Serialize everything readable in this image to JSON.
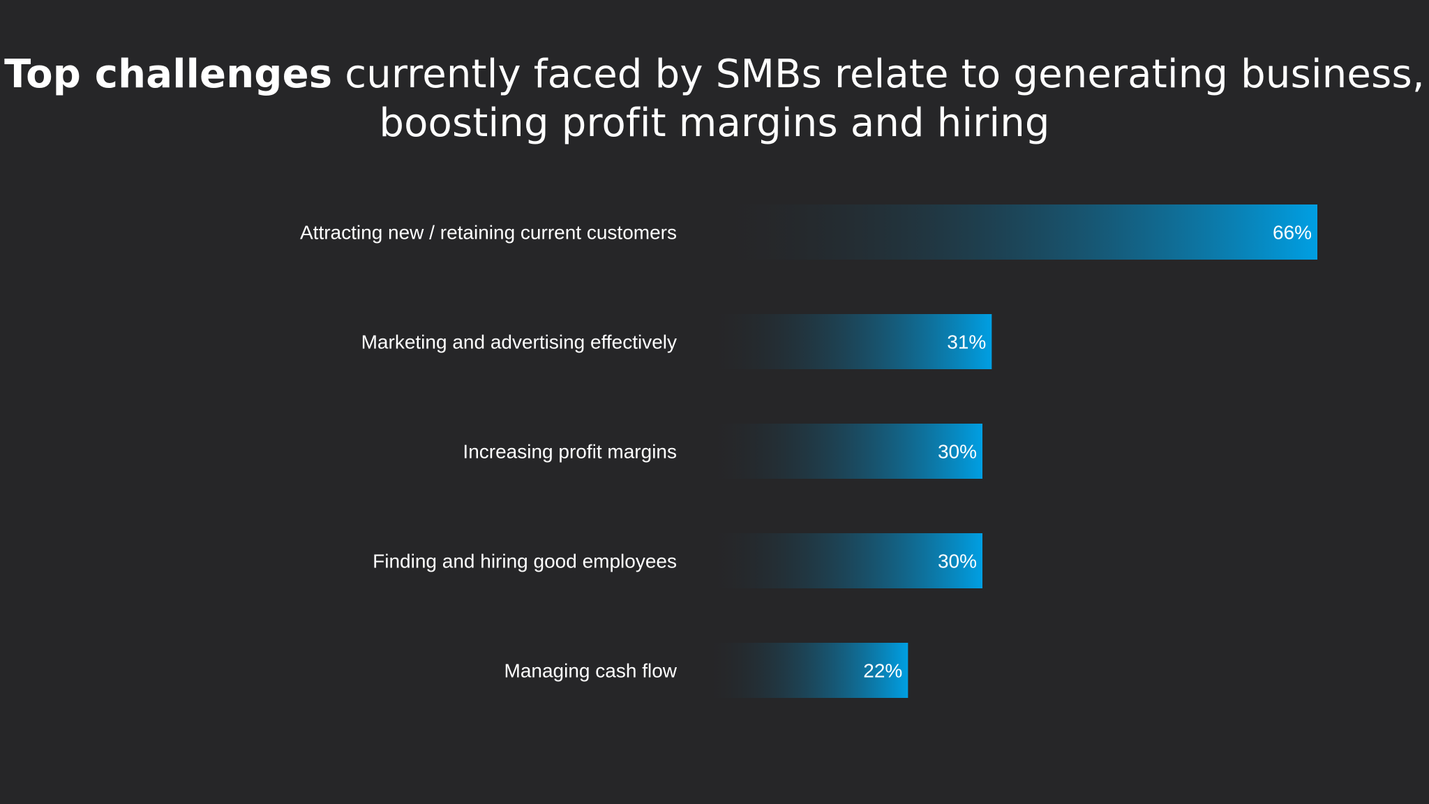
{
  "title": {
    "bold_part": "Top challenges",
    "rest_line1": " currently faced by SMBs relate to generating business,",
    "line2": "boosting profit margins and hiring"
  },
  "colors": {
    "background": "#262628",
    "bar_start": "#262628",
    "bar_end": "#009fe3",
    "text": "#ffffff"
  },
  "chart_data": {
    "type": "bar",
    "orientation": "horizontal",
    "title": "Top challenges currently faced by SMBs relate to generating business, boosting profit margins and hiring",
    "categories": [
      "Attracting new / retaining current customers",
      "Marketing and advertising effectively",
      "Increasing profit margins",
      "Finding and hiring good employees",
      "Managing cash flow"
    ],
    "values": [
      66,
      31,
      30,
      30,
      22
    ],
    "value_labels": [
      "66%",
      "31%",
      "30%",
      "30%",
      "22%"
    ],
    "xlim": [
      0,
      66
    ],
    "grid": false,
    "legend": "none"
  }
}
